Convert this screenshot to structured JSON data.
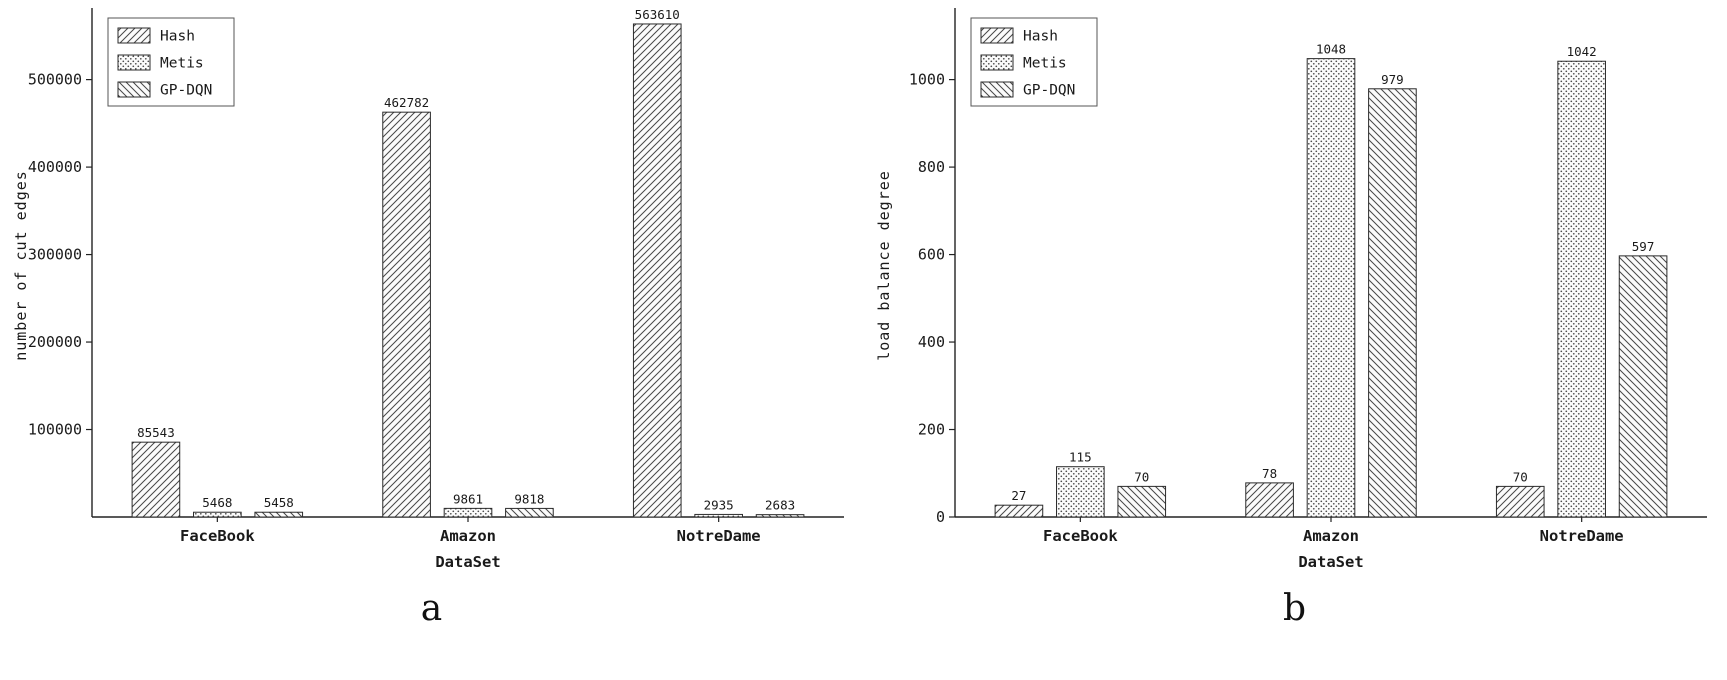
{
  "figure": {
    "background": "#ffffff"
  },
  "colors": {
    "bar_face": "#fbfbfb",
    "hatch": "#474747",
    "axis": "#222222",
    "text": "#1a1a1a"
  },
  "chart_data": [
    {
      "type": "bar",
      "title": "",
      "sublabel": "a",
      "xlabel": "DataSet",
      "ylabel": "number of cut edges",
      "categories": [
        "FaceBook",
        "Amazon",
        "NotreDame"
      ],
      "series": [
        {
          "name": "Hash",
          "pattern": "diag",
          "values": [
            85543,
            462782,
            563610
          ]
        },
        {
          "name": "Metis",
          "pattern": "dots",
          "values": [
            5468,
            9861,
            2935
          ]
        },
        {
          "name": "GP-DQN",
          "pattern": "backdiag",
          "values": [
            5458,
            9818,
            2683
          ]
        }
      ],
      "ylim": [
        0,
        575000
      ],
      "yticks": [
        100000,
        200000,
        300000,
        400000,
        500000
      ],
      "grid": false,
      "legend_position": "top-left",
      "legend_labels": [
        "Hash",
        "Metis",
        "GP-DQN"
      ]
    },
    {
      "type": "bar",
      "title": "",
      "sublabel": "b",
      "xlabel": "DataSet",
      "ylabel": "load balance degree",
      "categories": [
        "FaceBook",
        "Amazon",
        "NotreDame"
      ],
      "series": [
        {
          "name": "Hash",
          "pattern": "diag",
          "values": [
            27,
            78,
            70
          ]
        },
        {
          "name": "Metis",
          "pattern": "dots",
          "values": [
            115,
            1048,
            1042
          ]
        },
        {
          "name": "GP-DQN",
          "pattern": "backdiag",
          "values": [
            70,
            979,
            597
          ]
        }
      ],
      "ylim": [
        0,
        1150
      ],
      "yticks": [
        0,
        200,
        400,
        600,
        800,
        1000
      ],
      "grid": false,
      "legend_position": "top-left",
      "legend_labels": [
        "Hash",
        "Metis",
        "GP-DQN"
      ]
    }
  ]
}
